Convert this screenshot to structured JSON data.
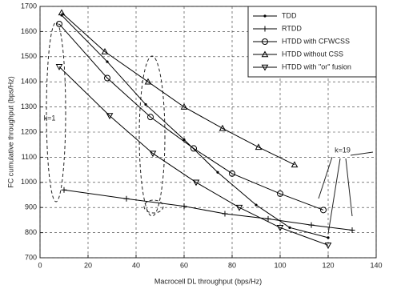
{
  "chart_data": {
    "type": "line",
    "xlabel": "Macrocell DL throughput (bps/Hz)",
    "ylabel": "FC cumulative throughput (bps/Hz)",
    "xlim": [
      0,
      140
    ],
    "ylim": [
      700,
      1700
    ],
    "xticks": [
      0,
      20,
      40,
      60,
      80,
      100,
      120,
      140
    ],
    "yticks": [
      700,
      800,
      900,
      1000,
      1100,
      1200,
      1300,
      1400,
      1500,
      1600,
      1700
    ],
    "grid": true,
    "legend": "upper right",
    "annotations": [
      "k=1",
      "k=19"
    ],
    "series": [
      {
        "name": "TDD",
        "color": "#000000",
        "marker": "dot",
        "x": [
          9,
          28,
          44,
          60,
          74,
          90,
          104,
          120
        ],
        "values": [
          1665,
          1480,
          1310,
          1170,
          1040,
          910,
          820,
          780
        ]
      },
      {
        "name": "RTDD",
        "color": "#000000",
        "marker": "plus",
        "x": [
          10,
          36,
          60,
          77,
          95,
          113,
          130
        ],
        "values": [
          970,
          935,
          905,
          875,
          855,
          830,
          810
        ]
      },
      {
        "name": "HTDD with CFWCSS",
        "color": "#000000",
        "marker": "circle",
        "x": [
          8,
          28,
          46,
          64,
          80,
          100,
          118
        ],
        "values": [
          1630,
          1415,
          1260,
          1135,
          1035,
          955,
          890
        ]
      },
      {
        "name": "HTDD without CSS",
        "color": "#000000",
        "marker": "triangle",
        "x": [
          9,
          27,
          45,
          60,
          76,
          91,
          106
        ],
        "values": [
          1675,
          1520,
          1400,
          1300,
          1215,
          1140,
          1070
        ]
      },
      {
        "name": "HTDD with \"or\" fusion",
        "color": "#000000",
        "marker": "down-triangle",
        "x": [
          8,
          29,
          47,
          65,
          83,
          100,
          120
        ],
        "values": [
          1460,
          1265,
          1115,
          1000,
          900,
          820,
          750
        ]
      }
    ]
  }
}
